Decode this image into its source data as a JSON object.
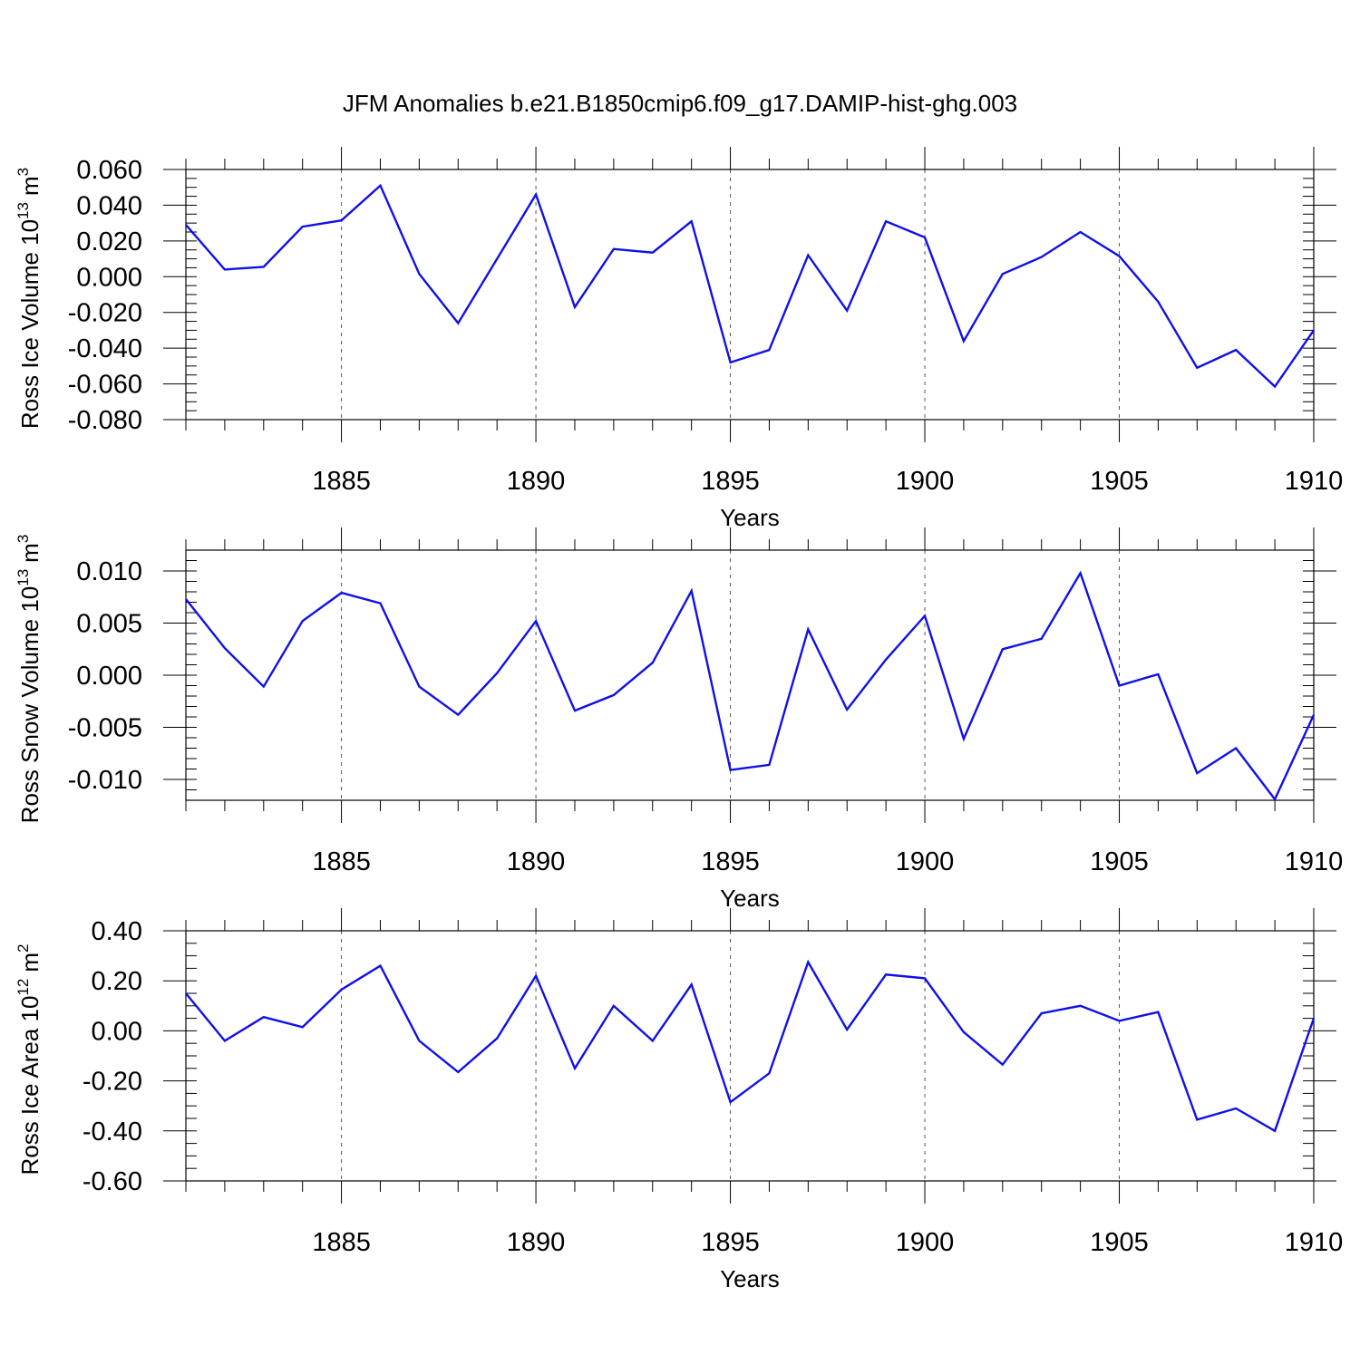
{
  "figure": {
    "title": "JFM Anomalies b.e21.B1850cmip6.f09_g17.DAMIP-hist-ghg.003"
  },
  "colors": {
    "line": "#1010e8",
    "axis": "#000000",
    "grid": "#555555"
  },
  "chart_data": [
    {
      "type": "line",
      "ylabel": {
        "text": "Ross Ice Volume 10",
        "sup": "13",
        "unit": "m",
        "unit_sup": "3"
      },
      "xlabel": "Years",
      "xlim": [
        1881,
        1910
      ],
      "ylim": [
        -0.08,
        0.06
      ],
      "yticks": [
        0.06,
        0.04,
        0.02,
        0.0,
        -0.02,
        -0.04,
        -0.06,
        -0.08
      ],
      "ytick_labels": [
        "0.060",
        "0.040",
        "0.020",
        "0.000",
        "-0.020",
        "-0.040",
        "-0.060",
        "-0.080"
      ],
      "yminor_step": 0.005,
      "xticks": [
        1885,
        1890,
        1895,
        1900,
        1905,
        1910
      ],
      "xtick_labels": [
        "1885",
        "1890",
        "1895",
        "1900",
        "1905",
        "1910"
      ],
      "grid": "vertical dashed at major x ticks",
      "series": [
        {
          "name": "Ross Ice Volume",
          "x": [
            1881,
            1882,
            1883,
            1884,
            1885,
            1886,
            1887,
            1888,
            1889,
            1890,
            1891,
            1892,
            1893,
            1894,
            1895,
            1896,
            1897,
            1898,
            1899,
            1900,
            1901,
            1902,
            1903,
            1904,
            1905,
            1906,
            1907,
            1908,
            1909,
            1910
          ],
          "values": [
            0.029,
            0.004,
            0.0055,
            0.028,
            0.0315,
            0.051,
            0.0015,
            -0.026,
            0.01,
            0.046,
            -0.017,
            0.0155,
            0.0135,
            0.031,
            -0.048,
            -0.041,
            0.012,
            -0.019,
            0.031,
            0.022,
            -0.036,
            0.0015,
            0.011,
            0.025,
            0.0115,
            -0.014,
            -0.051,
            -0.041,
            -0.0615,
            -0.03
          ]
        }
      ]
    },
    {
      "type": "line",
      "ylabel": {
        "text": "Ross Snow Volume 10",
        "sup": "13",
        "unit": "m",
        "unit_sup": "3"
      },
      "xlabel": "Years",
      "xlim": [
        1881,
        1910
      ],
      "ylim": [
        -0.012,
        0.012
      ],
      "yticks": [
        0.01,
        0.005,
        0.0,
        -0.005,
        -0.01
      ],
      "ytick_labels": [
        "0.010",
        "0.005",
        "0.000",
        "-0.005",
        "-0.010"
      ],
      "yminor_step": 0.001,
      "xticks": [
        1885,
        1890,
        1895,
        1900,
        1905,
        1910
      ],
      "xtick_labels": [
        "1885",
        "1890",
        "1895",
        "1900",
        "1905",
        "1910"
      ],
      "grid": "vertical dashed at major x ticks",
      "series": [
        {
          "name": "Ross Snow Volume",
          "x": [
            1881,
            1882,
            1883,
            1884,
            1885,
            1886,
            1887,
            1888,
            1889,
            1890,
            1891,
            1892,
            1893,
            1894,
            1895,
            1896,
            1897,
            1898,
            1899,
            1900,
            1901,
            1902,
            1903,
            1904,
            1905,
            1906,
            1907,
            1908,
            1909,
            1910
          ],
          "values": [
            0.0073,
            0.0026,
            -0.0011,
            0.0052,
            0.0079,
            0.0069,
            -0.0011,
            -0.0038,
            0.0002,
            0.0052,
            -0.0034,
            -0.0019,
            0.0012,
            0.0081,
            -0.0091,
            -0.0086,
            0.0044,
            -0.0033,
            0.0015,
            0.0057,
            -0.0061,
            0.0025,
            0.0035,
            0.0098,
            -0.001,
            0.0001,
            -0.0094,
            -0.007,
            -0.0119,
            -0.0038
          ]
        }
      ]
    },
    {
      "type": "line",
      "ylabel": {
        "text": "Ross Ice Area 10",
        "sup": "12",
        "unit": "m",
        "unit_sup": "2"
      },
      "xlabel": "Years",
      "xlim": [
        1881,
        1910
      ],
      "ylim": [
        -0.6,
        0.4
      ],
      "yticks": [
        0.4,
        0.2,
        0.0,
        -0.2,
        -0.4,
        -0.6
      ],
      "ytick_labels": [
        "0.40",
        "0.20",
        "0.00",
        "-0.20",
        "-0.40",
        "-0.60"
      ],
      "yminor_step": 0.05,
      "xticks": [
        1885,
        1890,
        1895,
        1900,
        1905,
        1910
      ],
      "xtick_labels": [
        "1885",
        "1890",
        "1895",
        "1900",
        "1905",
        "1910"
      ],
      "grid": "vertical dashed at major x ticks",
      "series": [
        {
          "name": "Ross Ice Area",
          "x": [
            1881,
            1882,
            1883,
            1884,
            1885,
            1886,
            1887,
            1888,
            1889,
            1890,
            1891,
            1892,
            1893,
            1894,
            1895,
            1896,
            1897,
            1898,
            1899,
            1900,
            1901,
            1902,
            1903,
            1904,
            1905,
            1906,
            1907,
            1908,
            1909,
            1910
          ],
          "values": [
            0.15,
            -0.04,
            0.055,
            0.015,
            0.165,
            0.26,
            -0.04,
            -0.165,
            -0.03,
            0.22,
            -0.15,
            0.1,
            -0.04,
            0.185,
            -0.285,
            -0.17,
            0.275,
            0.005,
            0.225,
            0.21,
            -0.005,
            -0.135,
            0.07,
            0.1,
            0.04,
            0.075,
            -0.355,
            -0.31,
            -0.4,
            0.05
          ]
        }
      ]
    }
  ]
}
